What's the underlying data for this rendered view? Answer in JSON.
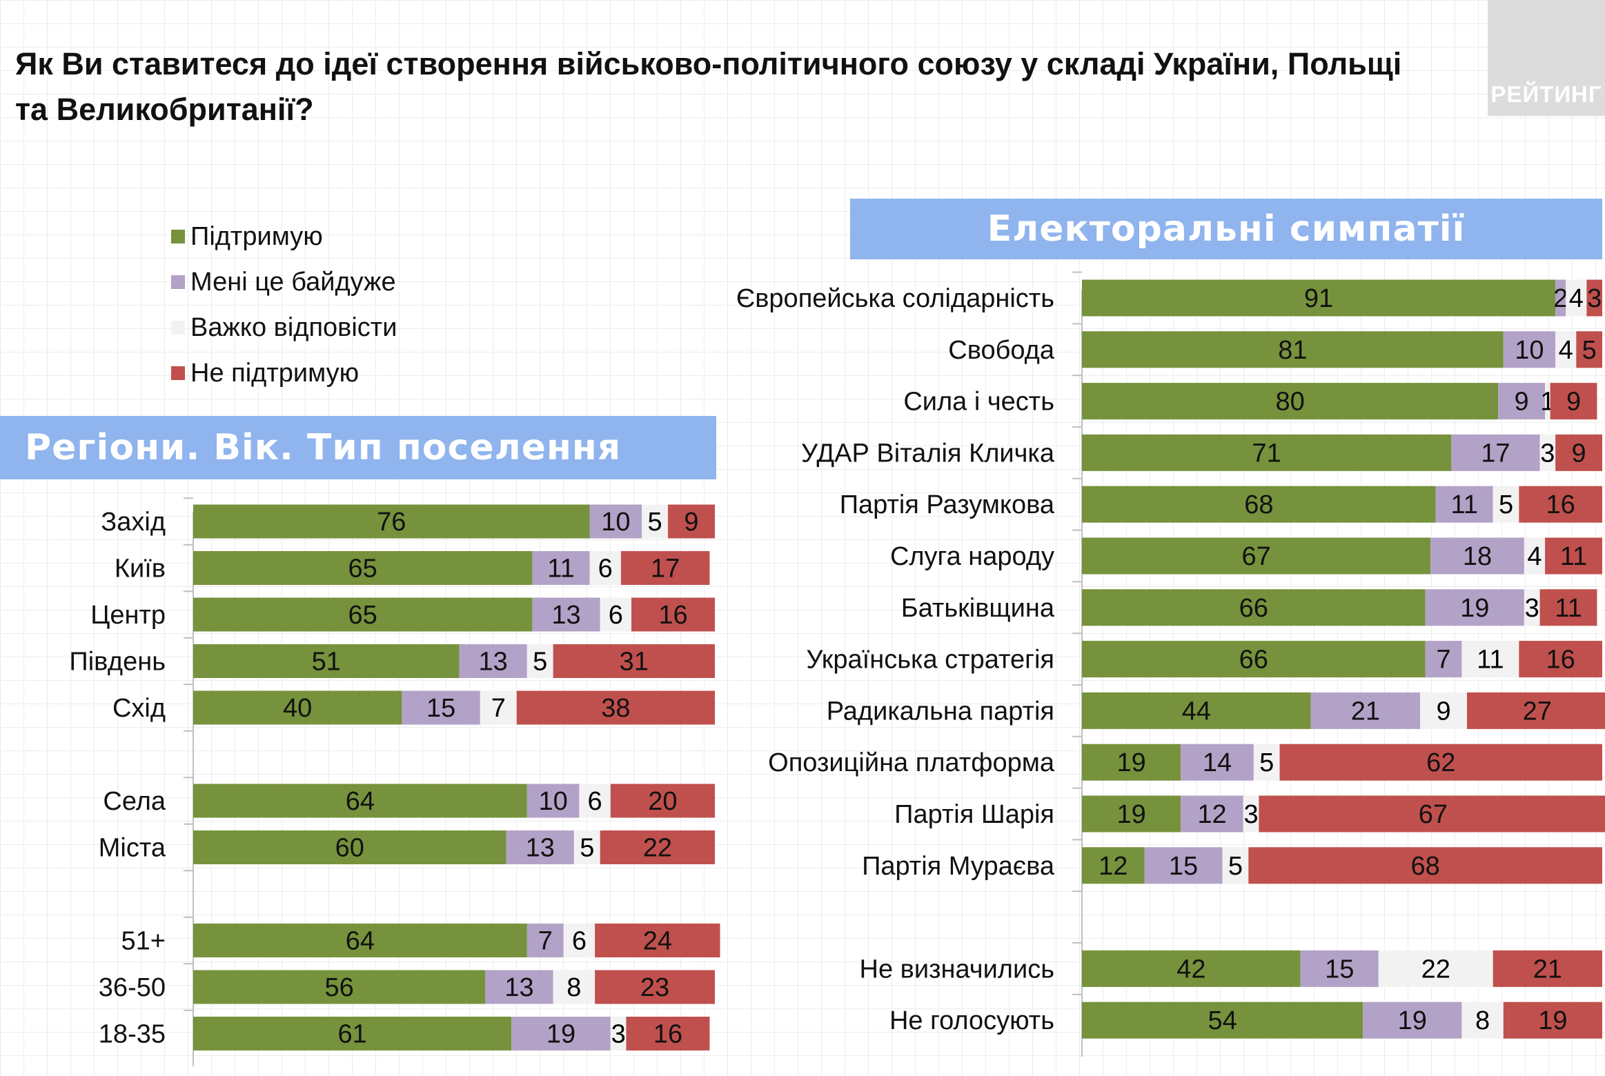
{
  "question": "Як Ви ставитеся до ідеї створення військово-політичного союзу у складі України, Польщі та Великобританії?",
  "logo_text": "РЕЙТИНГ",
  "legend": [
    {
      "label": "Підтримую",
      "color": "#76923c"
    },
    {
      "label": "Мені це байдуже",
      "color": "#b3a2c7"
    },
    {
      "label": "Важко відповісти",
      "color": "#f2f2f2"
    },
    {
      "label": "Не підтримую",
      "color": "#c0504d"
    }
  ],
  "left_title": "Регіони. Вік. Тип поселення",
  "right_title": "Електоральні симпатії",
  "chart_data": [
    {
      "type": "bar",
      "orientation": "horizontal",
      "stacked": true,
      "title": "Регіони. Вік. Тип поселення",
      "xlim": [
        0,
        100
      ],
      "categories": [
        "Захід",
        "Київ",
        "Центр",
        "Південь",
        "Схід",
        "",
        "Села",
        "Міста",
        "",
        "51+",
        "36-50",
        "18-35"
      ],
      "series": [
        {
          "name": "Підтримую",
          "color": "#76923c",
          "values": [
            76,
            65,
            65,
            51,
            40,
            null,
            64,
            60,
            null,
            64,
            56,
            61
          ]
        },
        {
          "name": "Мені це байдуже",
          "color": "#b3a2c7",
          "values": [
            10,
            11,
            13,
            13,
            15,
            null,
            10,
            13,
            null,
            7,
            13,
            19
          ]
        },
        {
          "name": "Важко відповісти",
          "color": "#f2f2f2",
          "values": [
            5,
            6,
            6,
            5,
            7,
            null,
            6,
            5,
            null,
            6,
            8,
            3
          ]
        },
        {
          "name": "Не підтримую",
          "color": "#c0504d",
          "values": [
            9,
            17,
            16,
            31,
            38,
            null,
            20,
            22,
            null,
            24,
            23,
            16
          ]
        }
      ]
    },
    {
      "type": "bar",
      "orientation": "horizontal",
      "stacked": true,
      "title": "Електоральні симпатії",
      "xlim": [
        0,
        100
      ],
      "categories": [
        "Європейська солідарність",
        "Свобода",
        "Сила і честь",
        "УДАР Віталія Кличка",
        "Партія Разумкова",
        "Слуга народу",
        "Батьківщина",
        "Українська стратегія",
        "Радикальна партія",
        "Опозиційна платформа",
        "Партія Шарія",
        "Партія Мураєва",
        "",
        "Не визначились",
        "Не голосують"
      ],
      "series": [
        {
          "name": "Підтримую",
          "color": "#76923c",
          "values": [
            91,
            81,
            80,
            71,
            68,
            67,
            66,
            66,
            44,
            19,
            19,
            12,
            null,
            42,
            54
          ]
        },
        {
          "name": "Мені це байдуже",
          "color": "#b3a2c7",
          "values": [
            2,
            10,
            9,
            17,
            11,
            18,
            19,
            7,
            21,
            14,
            12,
            15,
            null,
            15,
            19
          ]
        },
        {
          "name": "Важко відповісти",
          "color": "#f2f2f2",
          "values": [
            4,
            4,
            1,
            3,
            5,
            4,
            3,
            11,
            9,
            5,
            3,
            5,
            null,
            22,
            8
          ]
        },
        {
          "name": "Не підтримую",
          "color": "#c0504d",
          "values": [
            3,
            5,
            9,
            9,
            16,
            11,
            11,
            16,
            27,
            62,
            67,
            68,
            null,
            21,
            19
          ]
        }
      ]
    }
  ]
}
